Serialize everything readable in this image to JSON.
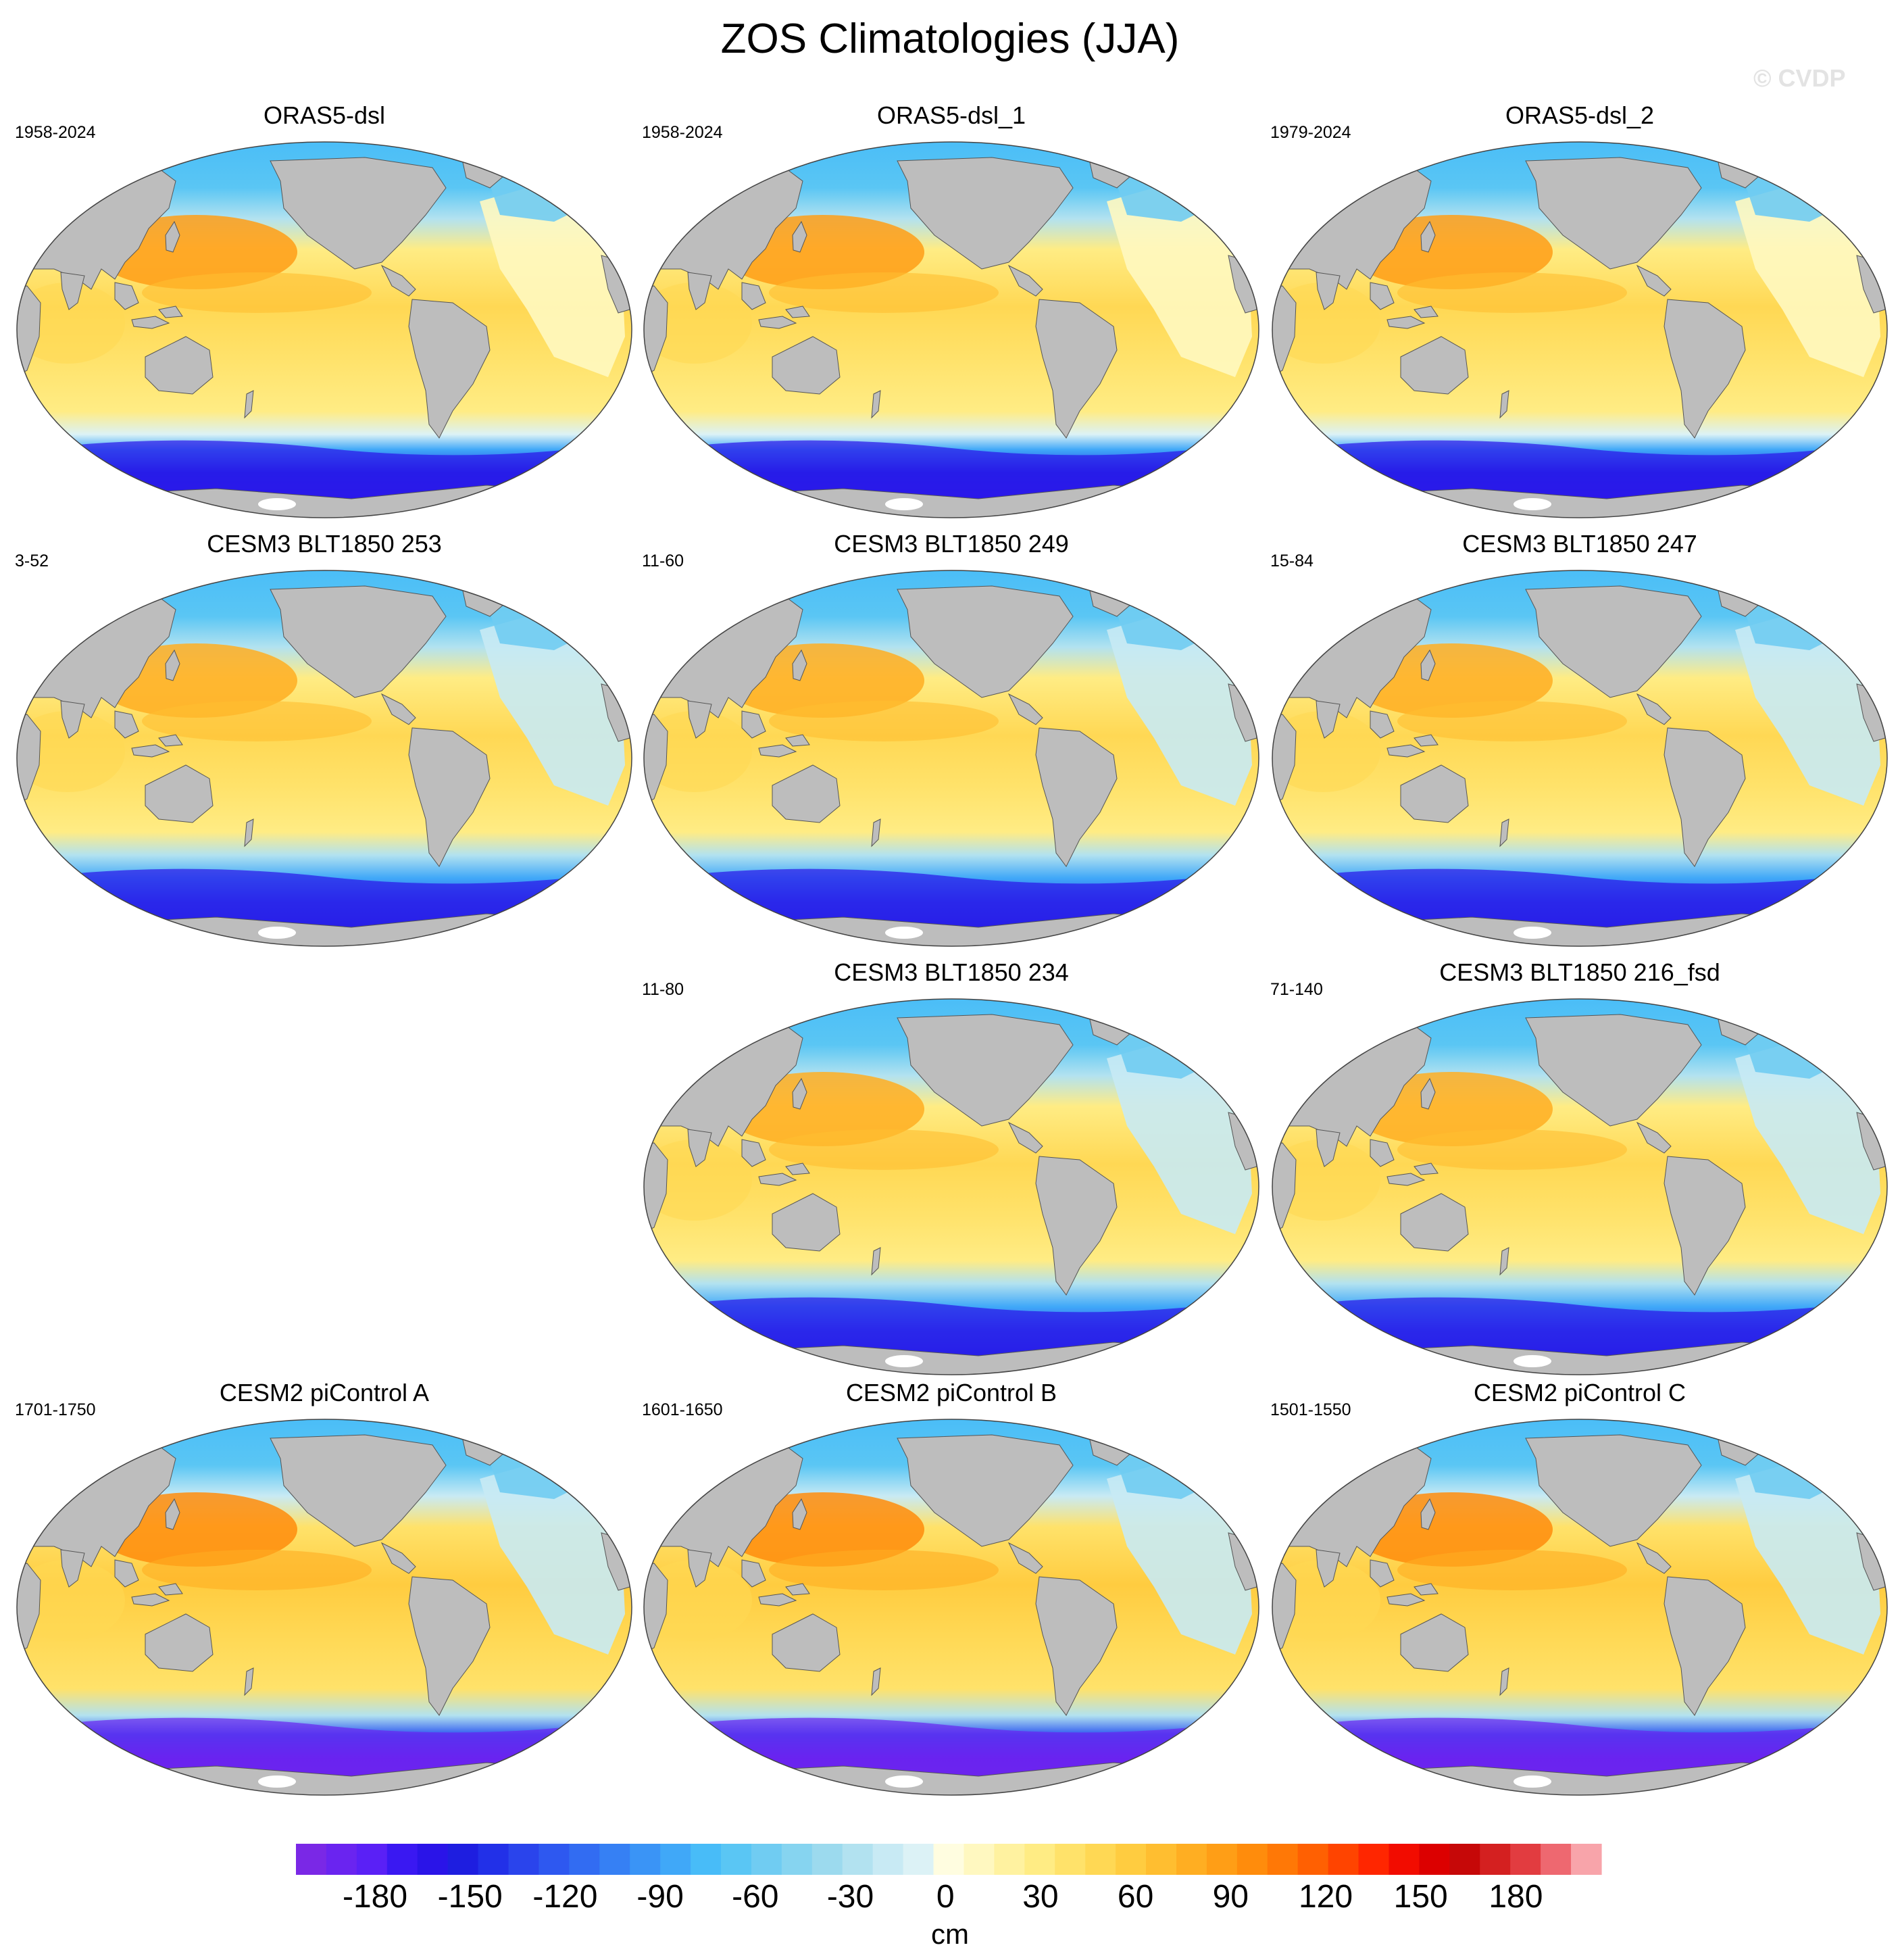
{
  "title": "ZOS Climatologies (JJA)",
  "watermark": "© CVDP",
  "panels": [
    {
      "title": "ORAS5-dsl",
      "years": "1958-2024",
      "style": "oras"
    },
    {
      "title": "ORAS5-dsl_1",
      "years": "1958-2024",
      "style": "oras"
    },
    {
      "title": "ORAS5-dsl_2",
      "years": "1979-2024",
      "style": "oras"
    },
    {
      "title": "CESM3 BLT1850 253",
      "years": "3-52",
      "style": "cesm3"
    },
    {
      "title": "CESM3 BLT1850 249",
      "years": "11-60",
      "style": "cesm3"
    },
    {
      "title": "CESM3 BLT1850 247",
      "years": "15-84",
      "style": "cesm3"
    },
    {
      "title": "CESM3 BLT1850 234",
      "years": "11-80",
      "style": "cesm3"
    },
    {
      "title": "CESM3 BLT1850 216_fsd",
      "years": "71-140",
      "style": "cesm3"
    },
    {
      "title": "CESM2 piControl A",
      "years": "1701-1750",
      "style": "cesm2"
    },
    {
      "title": "CESM2 piControl B",
      "years": "1601-1650",
      "style": "cesm2"
    },
    {
      "title": "CESM2 piControl C",
      "years": "1501-1550",
      "style": "cesm2"
    }
  ],
  "colorbar": {
    "tick_labels": [
      "-180",
      "-150",
      "-120",
      "-90",
      "-60",
      "-30",
      "0",
      "30",
      "60",
      "90",
      "120",
      "150",
      "180"
    ],
    "unit": "cm",
    "colors": [
      "#7a28e6",
      "#6a24f0",
      "#5a20f6",
      "#3a18f2",
      "#2a14e8",
      "#1e1ee0",
      "#2230e8",
      "#2a44ec",
      "#2e58f0",
      "#326cf2",
      "#3680f4",
      "#3a94f6",
      "#40a8f8",
      "#48bcf8",
      "#5ac6f4",
      "#70ccf2",
      "#86d4f0",
      "#9cdaee",
      "#b2e2f0",
      "#c8eaf4",
      "#dcf2f6",
      "#fffde0",
      "#fff8c0",
      "#fff2a0",
      "#ffec84",
      "#ffe26a",
      "#ffd854",
      "#ffcc40",
      "#ffbe30",
      "#ffae22",
      "#ff9e16",
      "#ff8c0c",
      "#ff7806",
      "#ff6002",
      "#ff4400",
      "#ff2600",
      "#f20c00",
      "#dc0000",
      "#c60808",
      "#d42020",
      "#e23c40",
      "#ee6870",
      "#f8a4aa"
    ],
    "land_color": "#bdbdbd"
  }
}
